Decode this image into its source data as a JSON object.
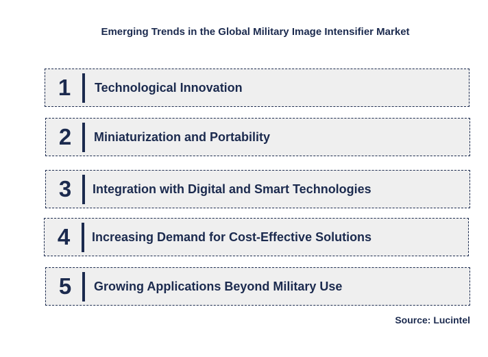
{
  "title": "Emerging Trends in the Global Military Image Intensifier Market",
  "trends": [
    {
      "number": "1",
      "label": "Technological Innovation"
    },
    {
      "number": "2",
      "label": "Miniaturization and Portability"
    },
    {
      "number": "3",
      "label": "Integration with Digital and Smart Technologies"
    },
    {
      "number": "4",
      "label": "Increasing Demand for Cost-Effective Solutions"
    },
    {
      "number": "5",
      "label": "Growing Applications Beyond Military Use"
    }
  ],
  "source": "Source: Lucintel",
  "colors": {
    "text": "#1b2a4e",
    "box_background": "#efefef",
    "box_border": "#1b2a4e"
  }
}
